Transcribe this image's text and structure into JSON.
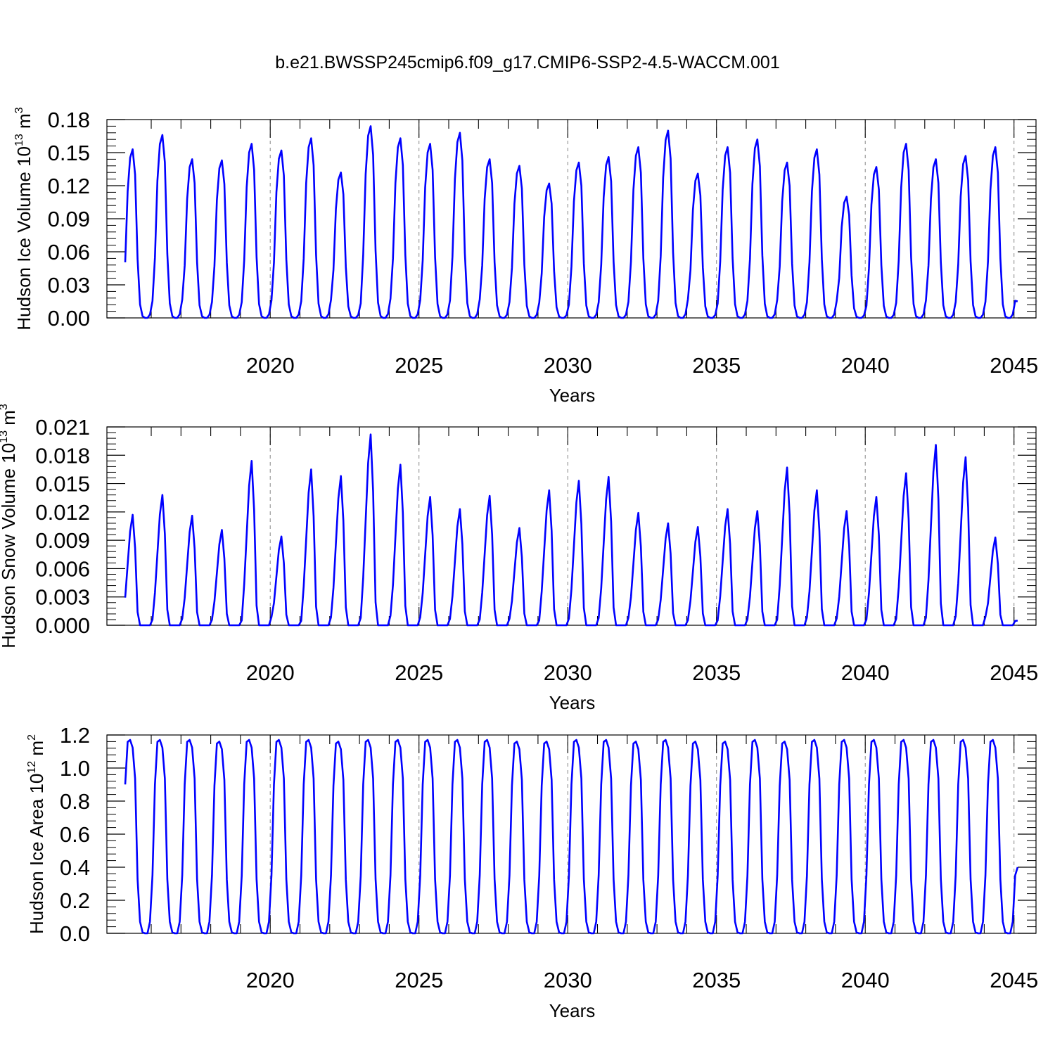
{
  "title": "b.e21.BWSSP245cmip6.f09_g17.CMIP6-SSP2-4.5-WACCM.001",
  "series_color": "#0000ff",
  "chart_data": [
    {
      "type": "line",
      "name": "ice-volume",
      "ylabel": {
        "main": "Hudson Ice Volume 10",
        "exp": "13",
        "unit": " m",
        "unit_exp": "3"
      },
      "xlabel": "Years",
      "xlim": [
        2015.125,
        2045.125
      ],
      "ylim": [
        0,
        0.18
      ],
      "x_ticks": [
        2020,
        2025,
        2030,
        2035,
        2040,
        2045
      ],
      "x_tick_labels": [
        "2020",
        "2025",
        "2030",
        "2035",
        "2040",
        "2045"
      ],
      "y_ticks": [
        0,
        0.03,
        0.06,
        0.09,
        0.12,
        0.15,
        0.18
      ],
      "y_tick_labels": [
        "0.00",
        "0.03",
        "0.06",
        "0.09",
        "0.12",
        "0.15",
        "0.18"
      ],
      "x_start": 2015.125,
      "x_step": 0.08333,
      "peaks": [
        0.153,
        0.166,
        0.144,
        0.143,
        0.158,
        0.152,
        0.163,
        0.132,
        0.174,
        0.163,
        0.158,
        0.168,
        0.144,
        0.138,
        0.122,
        0.141,
        0.146,
        0.155,
        0.17,
        0.131,
        0.155,
        0.162,
        0.141,
        0.153,
        0.11,
        0.137,
        0.158,
        0.144,
        0.147,
        0.155
      ],
      "monthly_shape": [
        0.33,
        0.75,
        0.95,
        1.0,
        0.85,
        0.35,
        0.08,
        0.01,
        0,
        0,
        0.02,
        0.1
      ],
      "end_value": 0.015
    },
    {
      "type": "line",
      "name": "snow-volume",
      "ylabel": {
        "main": "Hudson Snow Volume 10",
        "exp": "13",
        "unit": " m",
        "unit_exp": "3"
      },
      "xlabel": "Years",
      "xlim": [
        2015.125,
        2045.125
      ],
      "ylim": [
        0,
        0.021
      ],
      "x_ticks": [
        2020,
        2025,
        2030,
        2035,
        2040,
        2045
      ],
      "x_tick_labels": [
        "2020",
        "2025",
        "2030",
        "2035",
        "2040",
        "2045"
      ],
      "y_ticks": [
        0,
        0.003,
        0.006,
        0.009,
        0.012,
        0.015,
        0.018,
        0.021
      ],
      "y_tick_labels": [
        "0.000",
        "0.003",
        "0.006",
        "0.009",
        "0.012",
        "0.015",
        "0.018",
        "0.021"
      ],
      "x_start": 2015.125,
      "x_step": 0.08333,
      "peaks": [
        0.0117,
        0.0138,
        0.0116,
        0.0101,
        0.0174,
        0.0094,
        0.0165,
        0.0158,
        0.0202,
        0.017,
        0.0136,
        0.0123,
        0.0137,
        0.0103,
        0.0143,
        0.0153,
        0.0157,
        0.0119,
        0.0108,
        0.0104,
        0.0123,
        0.0121,
        0.0167,
        0.0143,
        0.0121,
        0.0136,
        0.0161,
        0.0191,
        0.0178,
        0.0093
      ],
      "monthly_shape": [
        0.25,
        0.55,
        0.85,
        1.0,
        0.7,
        0.12,
        0.0,
        0.0,
        0,
        0,
        0.0,
        0.05
      ],
      "end_value": 0.0005
    },
    {
      "type": "line",
      "name": "ice-area",
      "ylabel": {
        "main": "Hudson Ice Area 10",
        "exp": "12",
        "unit": " m",
        "unit_exp": "2"
      },
      "xlabel": "Years",
      "xlim": [
        2015.125,
        2045.125
      ],
      "ylim": [
        0,
        1.2
      ],
      "x_ticks": [
        2020,
        2025,
        2030,
        2035,
        2040,
        2045
      ],
      "x_tick_labels": [
        "2020",
        "2025",
        "2030",
        "2035",
        "2040",
        "2045"
      ],
      "y_ticks": [
        0,
        0.2,
        0.4,
        0.6,
        0.8,
        1.0,
        1.2
      ],
      "y_tick_labels": [
        "0.0",
        "0.2",
        "0.4",
        "0.6",
        "0.8",
        "1.0",
        "1.2"
      ],
      "x_start": 2015.125,
      "x_step": 0.08333,
      "peaks": [
        1.17,
        1.17,
        1.17,
        1.16,
        1.17,
        1.17,
        1.17,
        1.16,
        1.17,
        1.17,
        1.17,
        1.17,
        1.17,
        1.16,
        1.16,
        1.17,
        1.17,
        1.16,
        1.17,
        1.16,
        1.16,
        1.17,
        1.16,
        1.17,
        1.17,
        1.17,
        1.17,
        1.17,
        1.17,
        1.17
      ],
      "monthly_shape": [
        0.77,
        0.99,
        1.0,
        0.96,
        0.8,
        0.28,
        0.06,
        0.005,
        0,
        0,
        0.06,
        0.3
      ],
      "end_value": 0.4
    }
  ]
}
